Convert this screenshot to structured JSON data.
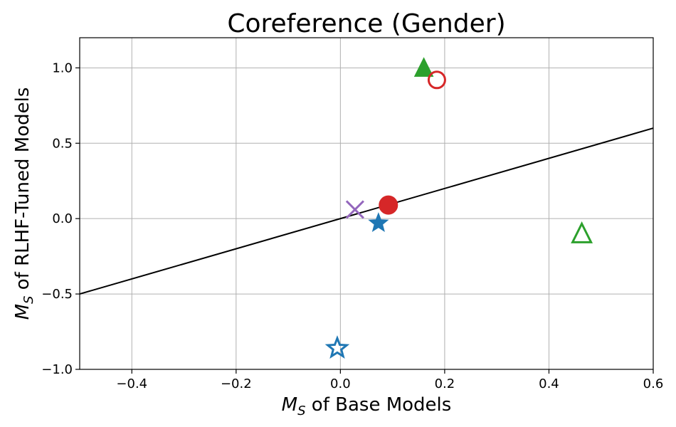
{
  "chart_data": {
    "type": "scatter",
    "title": "Coreference (Gender)",
    "xlabel": {
      "symbol": "M",
      "subscript": "S",
      "rest": " of Base Models"
    },
    "ylabel": {
      "symbol": "M",
      "subscript": "S",
      "rest": " of RLHF-Tuned Models"
    },
    "xlim": [
      -0.5,
      0.6
    ],
    "ylim": [
      -1.0,
      1.2
    ],
    "grid": true,
    "xticks": [
      {
        "value": -0.4,
        "label": "−0.4"
      },
      {
        "value": -0.2,
        "label": "−0.2"
      },
      {
        "value": 0.0,
        "label": "0.0"
      },
      {
        "value": 0.2,
        "label": "0.2"
      },
      {
        "value": 0.4,
        "label": "0.4"
      },
      {
        "value": 0.6,
        "label": "0.6"
      }
    ],
    "yticks": [
      {
        "value": -1.0,
        "label": "−1.0"
      },
      {
        "value": -0.5,
        "label": "−0.5"
      },
      {
        "value": 0.0,
        "label": "0.0"
      },
      {
        "value": 0.5,
        "label": "0.5"
      },
      {
        "value": 1.0,
        "label": "1.0"
      }
    ],
    "reference_line": {
      "x": [
        -0.5,
        0.6
      ],
      "y": [
        -0.5,
        0.6
      ],
      "color": "#000000"
    },
    "points": [
      {
        "x": 0.16,
        "y": 1.0,
        "marker": "triangle",
        "filled": true,
        "color": "#2ca02c"
      },
      {
        "x": 0.185,
        "y": 0.92,
        "marker": "circle",
        "filled": false,
        "color": "#d62728"
      },
      {
        "x": 0.028,
        "y": 0.06,
        "marker": "x",
        "filled": false,
        "color": "#9467bd"
      },
      {
        "x": 0.092,
        "y": 0.09,
        "marker": "circle",
        "filled": true,
        "color": "#d62728"
      },
      {
        "x": 0.073,
        "y": -0.03,
        "marker": "star",
        "filled": true,
        "color": "#1f77b4"
      },
      {
        "x": 0.463,
        "y": -0.1,
        "marker": "triangle",
        "filled": false,
        "color": "#2ca02c"
      },
      {
        "x": -0.006,
        "y": -0.86,
        "marker": "star",
        "filled": false,
        "color": "#1f77b4"
      }
    ]
  }
}
